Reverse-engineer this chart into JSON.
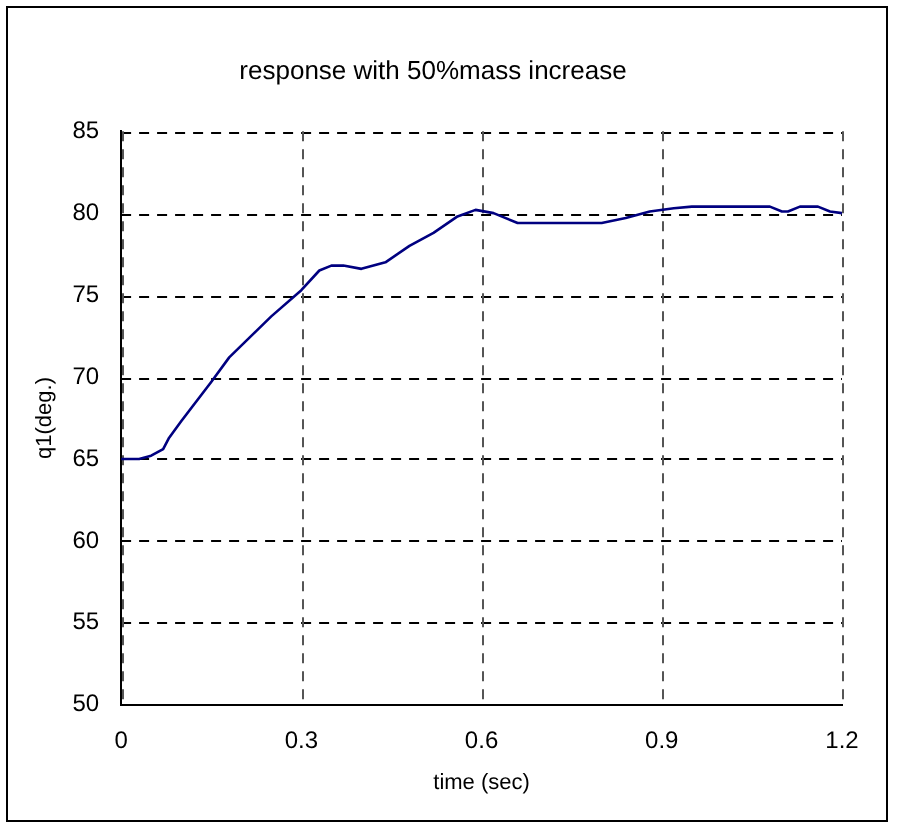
{
  "chart_data": {
    "type": "line",
    "title": "response with 50%mass increase",
    "xlabel": "time (sec)",
    "ylabel": "q1(deg.)",
    "x": [
      0,
      0.03,
      0.05,
      0.07,
      0.08,
      0.1,
      0.15,
      0.18,
      0.25,
      0.3,
      0.33,
      0.35,
      0.37,
      0.4,
      0.44,
      0.48,
      0.52,
      0.56,
      0.59,
      0.62,
      0.66,
      0.8,
      0.84,
      0.88,
      0.92,
      0.95,
      1.08,
      1.1,
      1.11,
      1.13,
      1.16,
      1.18,
      1.2
    ],
    "series": [
      {
        "color": "#000080",
        "values": [
          65,
          65,
          65.2,
          65.6,
          66.3,
          67.3,
          69.7,
          71.2,
          73.7,
          75.3,
          76.5,
          76.8,
          76.8,
          76.6,
          77,
          78,
          78.8,
          79.8,
          80.2,
          80,
          79.4,
          79.4,
          79.7,
          80.1,
          80.3,
          80.4,
          80.4,
          80.1,
          80.1,
          80.4,
          80.4,
          80.1,
          80
        ]
      }
    ],
    "xlim": [
      0,
      1.2
    ],
    "xticks": [
      0,
      0.3,
      0.6,
      0.9,
      1.2
    ],
    "ylim": [
      50,
      85
    ],
    "yticks": [
      50,
      55,
      60,
      65,
      70,
      75,
      80,
      85
    ],
    "grid": true,
    "legend": false,
    "marker": "none",
    "line_style": "solid"
  }
}
